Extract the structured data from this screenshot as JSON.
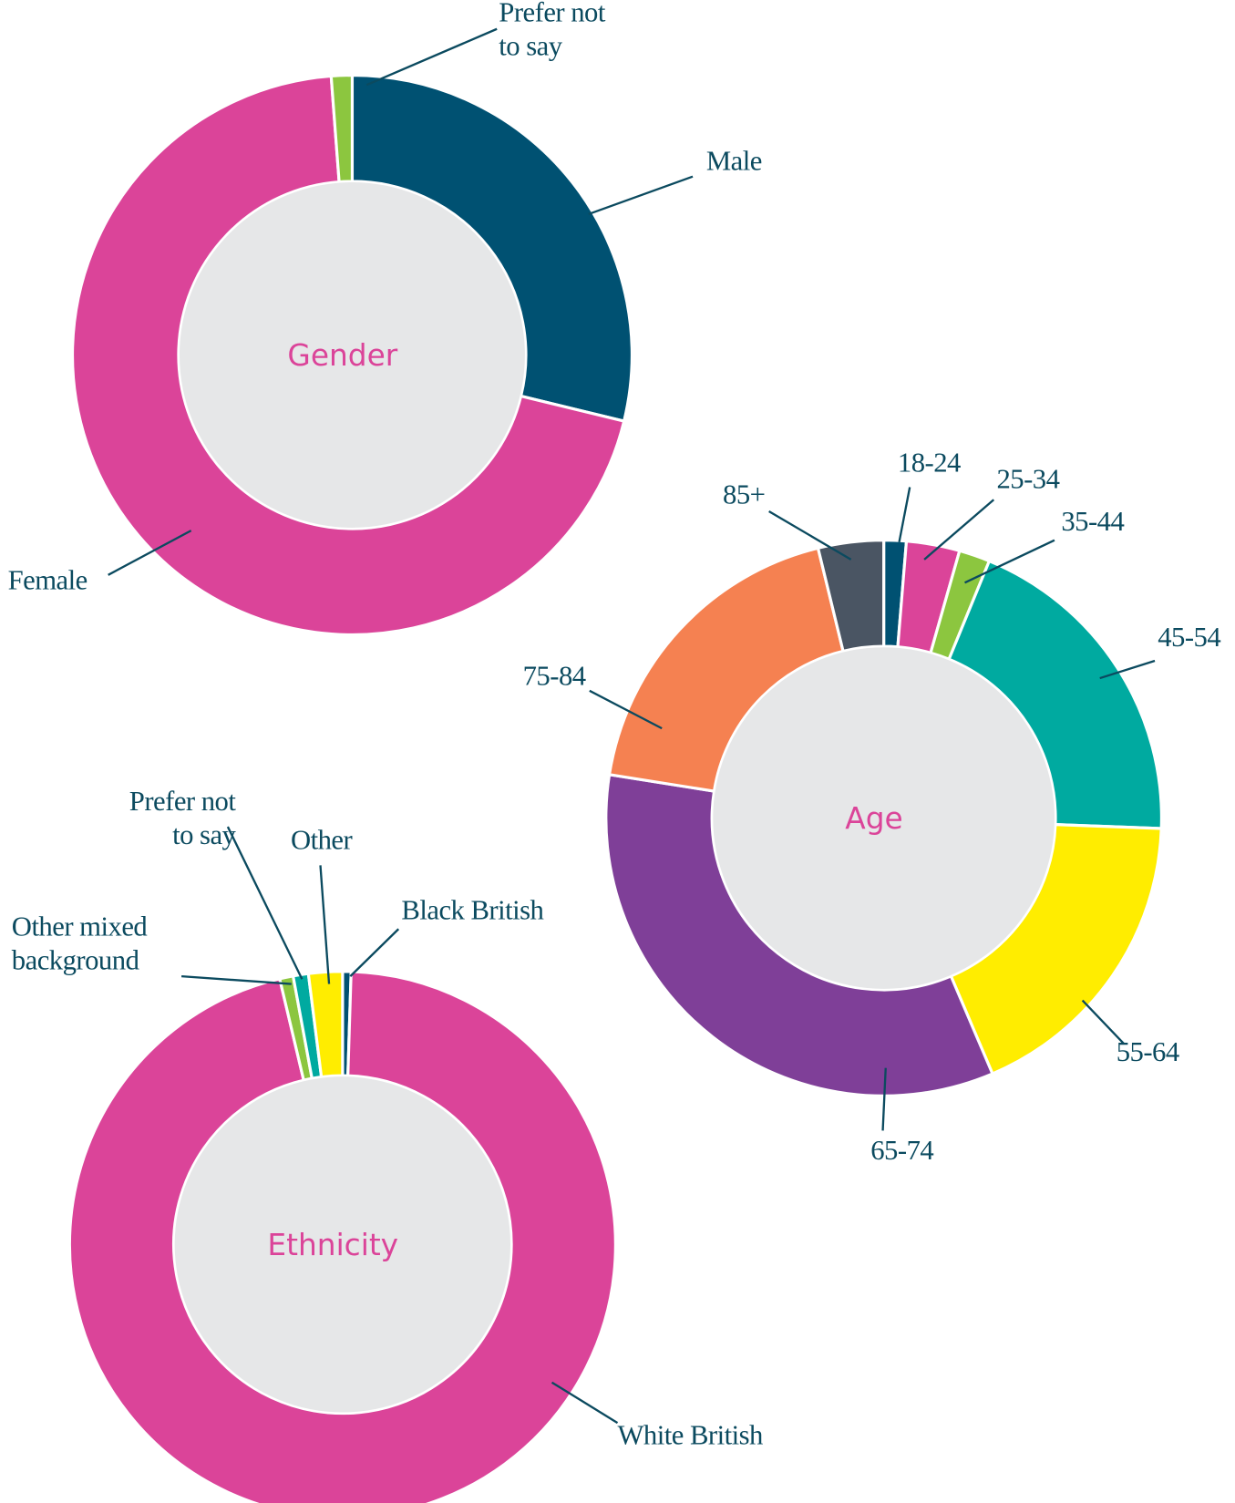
{
  "chart_data": [
    {
      "type": "pie",
      "title": "Gender",
      "categories": [
        "Male",
        "Female",
        "Prefer not to say"
      ],
      "values": [
        28.8,
        70,
        1.2
      ],
      "colors": [
        "#005172",
        "#db4499",
        "#8cc63f"
      ]
    },
    {
      "type": "pie",
      "title": "Age",
      "categories": [
        "18-24",
        "25-34",
        "35-44",
        "45-54",
        "55-64",
        "65-74",
        "75-84",
        "85+"
      ],
      "values": [
        1.3,
        3.1,
        1.8,
        19.4,
        18,
        33.9,
        18.7,
        3.8
      ],
      "colors": [
        "#005172",
        "#db4499",
        "#8cc63f",
        "#00aaa0",
        "#ffed00",
        "#7f3f98",
        "#f58151",
        "#4a5563"
      ]
    },
    {
      "type": "pie",
      "title": "Ethnicity",
      "categories": [
        "Black British",
        "White British",
        "Other mixed background",
        "Prefer not to say",
        "Other"
      ],
      "values": [
        0.5,
        95.8,
        0.8,
        0.9,
        2.0
      ],
      "colors": [
        "#005172",
        "#db4499",
        "#8cc63f",
        "#00aaa0",
        "#ffed00"
      ]
    }
  ]
}
